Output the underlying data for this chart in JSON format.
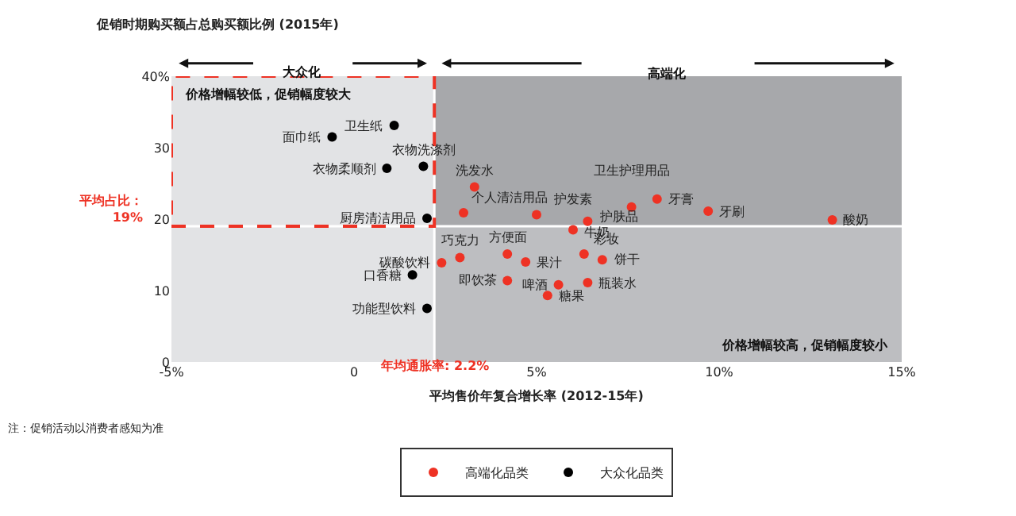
{
  "chart_data": {
    "type": "scatter",
    "ylabel": "促销时期购买额占总购买额比例 (2015年)",
    "xlabel": "平均售价年复合增长率 (2012-15年)",
    "xlim": [
      -5,
      15
    ],
    "xticks": [
      {
        "value": -5,
        "label": "-5%"
      },
      0,
      {
        "value": 5,
        "label": "5%"
      },
      {
        "value": 10,
        "label": "10%"
      },
      {
        "value": 15,
        "label": "15%"
      }
    ],
    "ylim": [
      0,
      40
    ],
    "yticks": [
      0,
      10,
      20,
      30,
      {
        "value": 40,
        "label": "40%"
      }
    ],
    "grid": false,
    "marker": "circle",
    "legend": "bottom",
    "bands": [
      {
        "axis": "x",
        "from": 2.2,
        "to": 15,
        "color": "#bdbec1"
      },
      {
        "axis": "y",
        "from": 19,
        "to": 40,
        "color": "#a7a8ab"
      },
      {
        "axis": "x",
        "from": -5,
        "to": 2.2,
        "color": "#e2e3e5"
      }
    ],
    "ref_lines": [
      {
        "axis": "x",
        "value": 2.2,
        "label": "年均通胀率: 2.2%",
        "color": "#ffffff"
      },
      {
        "axis": "y",
        "value": 19,
        "label": "平均占比：\n19%",
        "color": "#ffffff"
      }
    ],
    "series": [
      {
        "name": "高端化品类",
        "color": "#ee3224",
        "x": [
          3.3,
          3.0,
          5.0,
          7.6,
          8.3,
          9.7,
          13.1,
          6.4,
          6.0,
          6.3,
          6.8,
          4.2,
          2.9,
          4.7,
          4.2,
          5.6,
          6.4,
          5.3,
          2.4
        ],
        "values": [
          24.5,
          20.9,
          20.6,
          21.7,
          22.8,
          21.1,
          19.9,
          19.7,
          18.5,
          15.1,
          14.3,
          15.1,
          14.6,
          14.0,
          11.4,
          10.8,
          11.1,
          9.3,
          13.9
        ]
      },
      {
        "name": "大众化品类",
        "color": "#000000",
        "x": [
          1.1,
          -0.6,
          1.9,
          0.9,
          2.0,
          1.6,
          2.0
        ],
        "values": [
          33.1,
          31.5,
          27.4,
          27.1,
          20.1,
          12.2,
          7.5
        ]
      }
    ],
    "annotations": [
      "大众化",
      "高端化",
      "价格增幅较低，促销幅度较大",
      "价格增幅较高，促销幅度较小",
      "注：促销活动以消费者感知为准",
      {
        "text": "洗发水",
        "x": 3.3,
        "y": 24.5
      },
      {
        "text": "个人清洁用品",
        "x": 3.0,
        "y": 20.9
      },
      {
        "text": "护发素",
        "x": 5.0,
        "y": 20.6
      },
      {
        "text": "卫生护理用品",
        "x": 7.6,
        "y": 21.7
      },
      {
        "text": "牙膏",
        "x": 8.3,
        "y": 22.8
      },
      {
        "text": "牙刷",
        "x": 9.7,
        "y": 21.1
      },
      {
        "text": "酸奶",
        "x": 13.1,
        "y": 19.9
      },
      {
        "text": "护肤品",
        "x": 6.4,
        "y": 19.7
      },
      {
        "text": "牛奶",
        "x": 6.0,
        "y": 18.5
      },
      {
        "text": "彩妆",
        "x": 6.3,
        "y": 15.1
      },
      {
        "text": "饼干",
        "x": 6.8,
        "y": 14.3
      },
      {
        "text": "方便面",
        "x": 4.2,
        "y": 15.1
      },
      {
        "text": "巧克力",
        "x": 2.9,
        "y": 14.6
      },
      {
        "text": "果汁",
        "x": 4.7,
        "y": 14.0
      },
      {
        "text": "即饮茶",
        "x": 4.2,
        "y": 11.4
      },
      {
        "text": "啤酒",
        "x": 5.6,
        "y": 10.8
      },
      {
        "text": "瓶装水",
        "x": 6.4,
        "y": 11.1
      },
      {
        "text": "糖果",
        "x": 5.3,
        "y": 9.3
      },
      {
        "text": "碳酸饮料",
        "x": 2.4,
        "y": 13.9
      },
      {
        "text": "卫生纸",
        "x": 1.1,
        "y": 33.1
      },
      {
        "text": "面巾纸",
        "x": -0.6,
        "y": 31.5
      },
      {
        "text": "衣物洗涤剂",
        "x": 1.9,
        "y": 27.4
      },
      {
        "text": "衣物柔顺剂",
        "x": 0.9,
        "y": 27.1
      },
      {
        "text": "厨房清洁用品",
        "x": 2.0,
        "y": 20.1
      },
      {
        "text": "口香糖",
        "x": 1.6,
        "y": 12.2
      },
      {
        "text": "功能型饮料",
        "x": 2.0,
        "y": 7.5
      }
    ]
  }
}
